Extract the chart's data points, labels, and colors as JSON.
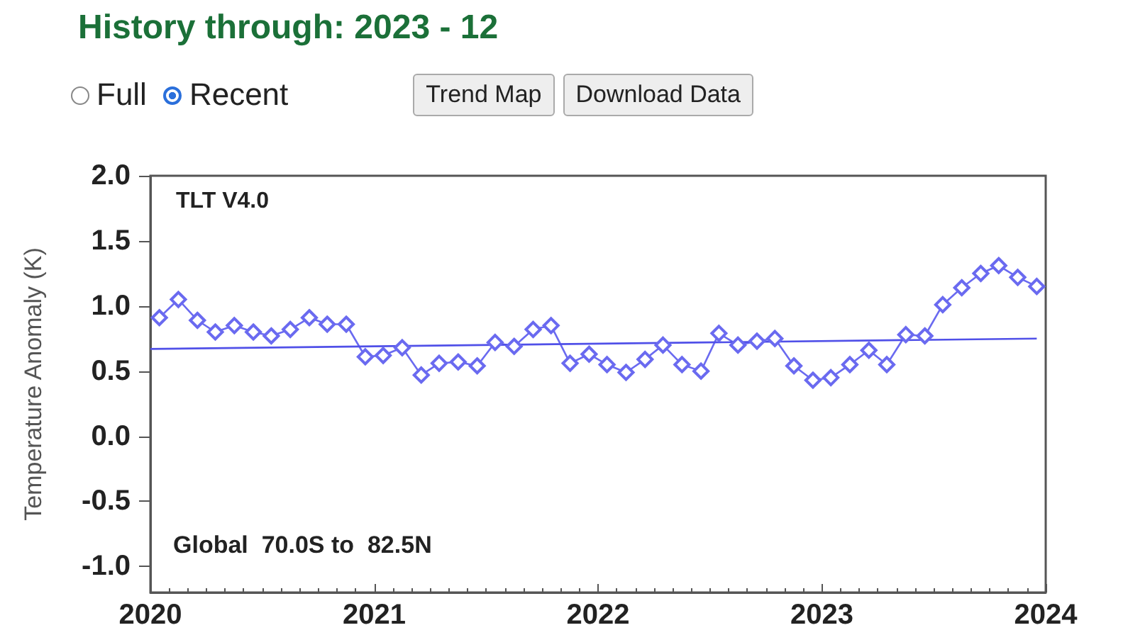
{
  "chart_data": {
    "type": "line",
    "title": "History through: 2023 - 12",
    "ylabel": "Temperature Anomaly (K)",
    "annotations": [
      "TLT V4.0",
      "Global  70.0S to  82.5N",
      "Full",
      "Recent",
      "Trend Map",
      "Download Data"
    ],
    "x": [
      2020.04,
      2020.125,
      2020.21,
      2020.29,
      2020.375,
      2020.46,
      2020.54,
      2020.625,
      2020.71,
      2020.79,
      2020.875,
      2020.96,
      2021.04,
      2021.125,
      2021.21,
      2021.29,
      2021.375,
      2021.46,
      2021.54,
      2021.625,
      2021.71,
      2021.79,
      2021.875,
      2021.96,
      2022.04,
      2022.125,
      2022.21,
      2022.29,
      2022.375,
      2022.46,
      2022.54,
      2022.625,
      2022.71,
      2022.79,
      2022.875,
      2022.96,
      2023.04,
      2023.125,
      2023.21,
      2023.29,
      2023.375,
      2023.46,
      2023.54,
      2023.625,
      2023.71,
      2023.79,
      2023.875,
      2023.96
    ],
    "series": [
      {
        "color": "#6a6af0",
        "values": [
          0.91,
          1.05,
          0.89,
          0.8,
          0.85,
          0.8,
          0.77,
          0.82,
          0.91,
          0.86,
          0.86,
          0.61,
          0.62,
          0.68,
          0.47,
          0.56,
          0.57,
          0.54,
          0.72,
          0.69,
          0.82,
          0.85,
          0.56,
          0.63,
          0.55,
          0.49,
          0.59,
          0.7,
          0.55,
          0.5,
          0.79,
          0.7,
          0.73,
          0.75,
          0.54,
          0.43,
          0.45,
          0.55,
          0.66,
          0.55,
          0.78,
          0.77,
          1.01,
          1.14,
          1.25,
          1.31,
          1.22,
          1.15
        ]
      },
      {
        "type": "line",
        "color": "#5050e8",
        "marker": "none",
        "x": [
          2020,
          2023.96
        ],
        "values": [
          0.67,
          0.75
        ]
      }
    ],
    "marker": "diamond",
    "grid": false,
    "xlim": [
      2020,
      2024
    ],
    "xticks": [
      2020,
      2021,
      2022,
      2023,
      2024
    ],
    "ylim": [
      -1.2,
      2.0
    ],
    "yticks": [
      {
        "value": -1,
        "label": "-1.0"
      },
      {
        "value": -0.5,
        "label": "-0.5"
      },
      {
        "value": 0,
        "label": "0.0"
      },
      {
        "value": 0.5,
        "label": "0.5"
      },
      {
        "value": 1,
        "label": "1.0"
      },
      {
        "value": 1.5,
        "label": "1.5"
      },
      {
        "value": 2,
        "label": "2.0"
      }
    ]
  }
}
